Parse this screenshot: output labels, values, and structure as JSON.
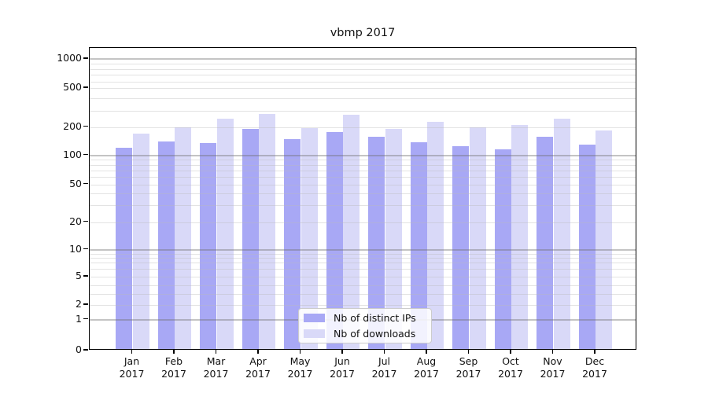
{
  "title": "vbmp 2017",
  "chart_data": {
    "type": "bar",
    "title": "vbmp 2017",
    "y_scale": "log",
    "grid": true,
    "ylim": [
      0,
      1000
    ],
    "y_tick_labels": [
      "1000",
      "500",
      "200",
      "100",
      "50",
      "20",
      "10",
      "5",
      "2",
      "1",
      "0"
    ],
    "x_categories": [
      "Jan 2017",
      "Feb 2017",
      "Mar 2017",
      "Apr 2017",
      "May 2017",
      "Jun 2017",
      "Jul 2017",
      "Aug 2017",
      "Sep 2017",
      "Oct 2017",
      "Nov 2017",
      "Dec 2017"
    ],
    "series": [
      {
        "name": "Nb of distinct IPs",
        "color": "#a8a8f5",
        "values": [
          119,
          140,
          135,
          188,
          148,
          176,
          156,
          137,
          125,
          115,
          156,
          129
        ]
      },
      {
        "name": "Nb of downloads",
        "color": "#d9d9f8",
        "values": [
          170,
          196,
          243,
          272,
          194,
          268,
          189,
          225,
          197,
          207,
          242,
          183
        ]
      }
    ],
    "legend_position": "lower center"
  },
  "legend": {
    "items": [
      {
        "label": "Nb of distinct IPs",
        "color": "#a8a8f5"
      },
      {
        "label": "Nb of downloads",
        "color": "#d9d9f8"
      }
    ]
  }
}
